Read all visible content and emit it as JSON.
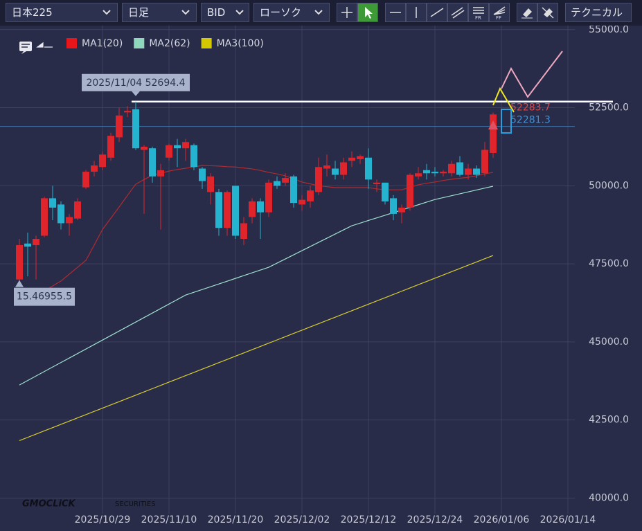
{
  "toolbar": {
    "symbol": "日本225",
    "period": "日足",
    "price_type": "BID",
    "chart_style": "ローソク",
    "technical": "テクニカル"
  },
  "logo": {
    "brand": "GMOCLiCK",
    "sub": "SECURITIES"
  },
  "chart_data": {
    "type": "candlestick",
    "categories": [
      null,
      null,
      null,
      null,
      null,
      null,
      null,
      null,
      null,
      null,
      "2025/10/29",
      null,
      null,
      null,
      null,
      null,
      null,
      null,
      "2025/11/10",
      null,
      null,
      null,
      null,
      null,
      null,
      null,
      "2025/11/20",
      null,
      null,
      null,
      null,
      null,
      null,
      null,
      "2025/12/02",
      null,
      null,
      null,
      null,
      null,
      null,
      null,
      "2025/12/12",
      null,
      null,
      null,
      null,
      null,
      null,
      null,
      "2025/12/24",
      null,
      null,
      null,
      null,
      null,
      null,
      null,
      "2026/01/06",
      null,
      null,
      null,
      null,
      null,
      null,
      null,
      "2026/01/14"
    ],
    "open": [
      47000,
      48150,
      48100,
      48400,
      49600,
      49400,
      48800,
      48950,
      49950,
      50450,
      50600,
      50900,
      51550,
      52350,
      52450,
      51150,
      51200,
      50300,
      50900,
      51300,
      51200,
      51300,
      50550,
      49800,
      49800,
      48650,
      50000,
      48300,
      49000,
      49500,
      49150,
      50150,
      50100,
      50300,
      49400,
      49500,
      49800,
      50550,
      50550,
      50350,
      50800,
      50850,
      50900,
      50050,
      50100,
      49600,
      49150,
      49300,
      50300,
      50500,
      50450,
      50400,
      50400,
      50750,
      50350,
      50550,
      50400,
      51050,
      null,
      null,
      null,
      null,
      null,
      null,
      null,
      null,
      null
    ],
    "high": [
      48300,
      48500,
      48400,
      49650,
      50000,
      49500,
      49100,
      49600,
      50500,
      50800,
      51100,
      51700,
      52500,
      52550,
      52694.4,
      51300,
      51250,
      50700,
      51350,
      51500,
      51500,
      51350,
      50600,
      50400,
      49900,
      49850,
      50000,
      49000,
      49600,
      49600,
      50200,
      50300,
      50400,
      50350,
      49700,
      50000,
      50900,
      51000,
      50800,
      50900,
      51100,
      51000,
      51200,
      50200,
      50100,
      49700,
      49400,
      50400,
      50600,
      50700,
      50600,
      50500,
      50800,
      50950,
      50700,
      50650,
      51400,
      52350,
      null,
      null,
      null,
      null,
      null,
      null,
      null,
      null,
      null
    ],
    "low": [
      46955.5,
      47100,
      47000,
      48350,
      48900,
      48600,
      48400,
      48900,
      49900,
      50300,
      50500,
      50800,
      51400,
      52200,
      51150,
      49100,
      50100,
      48600,
      50800,
      50600,
      50800,
      50500,
      49900,
      49400,
      48400,
      48400,
      48300,
      48100,
      48800,
      48300,
      49000,
      49900,
      50000,
      49300,
      49200,
      49300,
      49700,
      50300,
      50200,
      50200,
      50600,
      50700,
      49900,
      49800,
      49400,
      48900,
      48800,
      49200,
      50200,
      50200,
      50300,
      50300,
      50300,
      50300,
      50200,
      50250,
      50300,
      50900,
      null,
      null,
      null,
      null,
      null,
      null,
      null,
      null,
      null
    ],
    "close": [
      48100,
      48050,
      48300,
      49600,
      49300,
      48800,
      49000,
      49500,
      50450,
      50650,
      51000,
      51600,
      52250,
      52400,
      51200,
      51250,
      50300,
      50500,
      51300,
      51200,
      51400,
      50600,
      50150,
      50300,
      48650,
      49800,
      48400,
      48800,
      49500,
      49150,
      50100,
      50000,
      50250,
      49450,
      49550,
      49850,
      50600,
      50650,
      50350,
      50750,
      50900,
      50950,
      50200,
      50100,
      49500,
      49100,
      49300,
      50350,
      50400,
      50400,
      50400,
      50450,
      50700,
      50350,
      50550,
      50350,
      51150,
      52283.7,
      null,
      null,
      null,
      null,
      null,
      null,
      null,
      null,
      null
    ],
    "up_color": "#e0242c",
    "down_color": "#26b3d0",
    "series": [
      {
        "name": "MA1(20)",
        "color": "#e8161b",
        "line_color": "#b22a30",
        "values": [
          46170,
          46320,
          46470,
          46630,
          46790,
          46950,
          47170,
          47390,
          47610,
          48100,
          48600,
          48960,
          49320,
          49690,
          50050,
          50200,
          50340,
          50400,
          50470,
          50520,
          50560,
          50600,
          50650,
          50640,
          50630,
          50610,
          50600,
          50570,
          50540,
          50490,
          50430,
          50380,
          50320,
          50220,
          50120,
          50060,
          50000,
          49970,
          49940,
          49940,
          49940,
          49940,
          49940,
          49900,
          49870,
          49870,
          49870,
          49950,
          50030,
          50080,
          50120,
          50170,
          50210,
          50240,
          50270,
          50320,
          50380,
          50430,
          null,
          null,
          null,
          null,
          null,
          null,
          null,
          null,
          null
        ]
      },
      {
        "name": "MA2(62)",
        "color": "#8fd8bc",
        "line_color": "#9fe0d0",
        "values": [
          43620,
          43764,
          43908,
          44052,
          44196,
          44340,
          44484,
          44628,
          44772,
          44916,
          45060,
          45204,
          45348,
          45492,
          45636,
          45780,
          45924,
          46068,
          46212,
          46356,
          46500,
          46589,
          46678,
          46767,
          46856,
          46945,
          47034,
          47123,
          47212,
          47301,
          47390,
          47523,
          47656,
          47789,
          47922,
          48055,
          48188,
          48321,
          48454,
          48587,
          48720,
          48804,
          48888,
          48972,
          49056,
          49140,
          49224,
          49308,
          49392,
          49476,
          49560,
          49621,
          49682,
          49743,
          49804,
          49865,
          49926,
          49985,
          null,
          null,
          null,
          null,
          null,
          null,
          null,
          null,
          null
        ]
      },
      {
        "name": "MA3(100)",
        "color": "#d4c800",
        "line_color": "#d8cc30",
        "values": [
          41840,
          41944,
          42048,
          42152,
          42256,
          42360,
          42464,
          42568,
          42672,
          42776,
          42880,
          42984,
          43088,
          43192,
          43296,
          43400,
          43504,
          43608,
          43712,
          43816,
          43920,
          44024,
          44128,
          44232,
          44336,
          44440,
          44544,
          44648,
          44752,
          44856,
          44960,
          45064,
          45168,
          45272,
          45376,
          45480,
          45584,
          45688,
          45792,
          45896,
          46000,
          46104,
          46208,
          46312,
          46416,
          46520,
          46624,
          46728,
          46832,
          46936,
          47040,
          47144,
          47248,
          47352,
          47456,
          47560,
          47664,
          47768,
          null,
          null,
          null,
          null,
          null,
          null,
          null,
          null,
          null
        ]
      }
    ],
    "ylim": [
      39500,
      55150
    ],
    "yticks": [
      {
        "value": 40000,
        "label": "40000.0"
      },
      {
        "value": 42500,
        "label": "42500.0"
      },
      {
        "value": 45000,
        "label": "45000.0"
      },
      {
        "value": 47500,
        "label": "47500.0"
      },
      {
        "value": 50000,
        "label": "50000.0"
      },
      {
        "value": 52500,
        "label": "52500.0"
      },
      {
        "value": 55000,
        "label": "55000.0"
      }
    ],
    "grid": true,
    "hlines": [
      {
        "value": 52694.4,
        "color": "#ffffff"
      },
      {
        "value": 51900,
        "color": "#3d73a8"
      }
    ],
    "high_label": "2025/11/04 52694.4",
    "low_label": "15.46955.5",
    "last_prices": [
      {
        "value": 52283.7,
        "color": "#d8474e"
      },
      {
        "value": 52281.3,
        "color": "#3f8fd6"
      }
    ]
  }
}
